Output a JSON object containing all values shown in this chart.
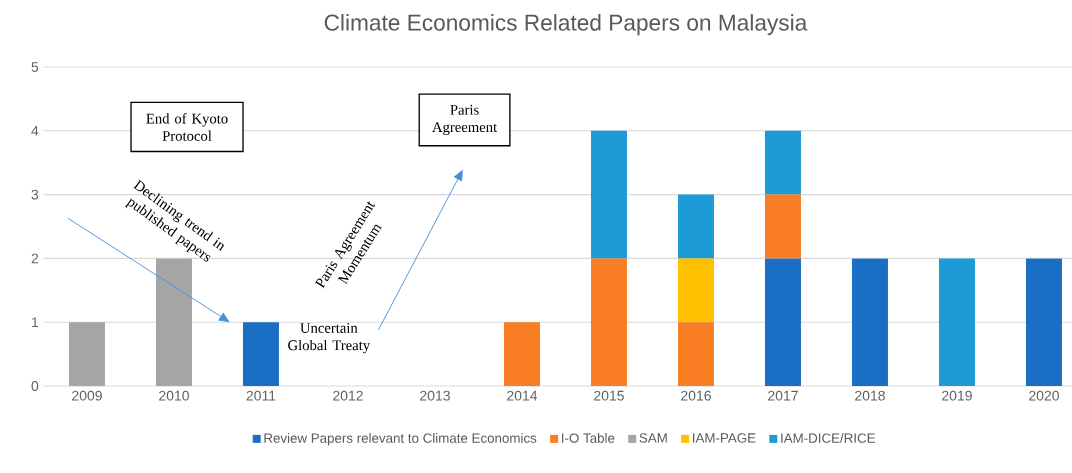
{
  "chart_data": {
    "type": "bar",
    "title": "Climate Economics Related Papers on Malaysia",
    "categories": [
      "2009",
      "2010",
      "2011",
      "2012",
      "2013",
      "2014",
      "2015",
      "2016",
      "2017",
      "2018",
      "2019",
      "2020"
    ],
    "stacked": true,
    "series": [
      {
        "name": "Review Papers relevant to Climate Economics",
        "color": "#1a6fc4",
        "values": [
          0,
          0,
          1,
          0,
          0,
          0,
          0,
          0,
          2,
          2,
          0,
          2
        ]
      },
      {
        "name": "I-O Table",
        "color": "#f97d23",
        "values": [
          0,
          0,
          0,
          0,
          0,
          1,
          2,
          1,
          1,
          0,
          0,
          0
        ]
      },
      {
        "name": "SAM",
        "color": "#a5a5a5",
        "values": [
          1,
          2,
          0,
          0,
          0,
          0,
          0,
          0,
          0,
          0,
          0,
          0
        ]
      },
      {
        "name": "IAM-PAGE",
        "color": "#ffc000",
        "values": [
          0,
          0,
          0,
          0,
          0,
          0,
          0,
          1,
          0,
          0,
          0,
          0
        ]
      },
      {
        "name": "IAM-DICE/RICE",
        "color": "#1e9ad6",
        "values": [
          0,
          0,
          0,
          0,
          0,
          0,
          2,
          1,
          1,
          0,
          2,
          0
        ]
      }
    ],
    "ylim": [
      0,
      5
    ],
    "yticks": [
      0,
      1,
      2,
      3,
      4,
      5
    ],
    "grid": "y",
    "legend": "bottom",
    "annotations": [
      "End of Kyoto Protocol",
      "Paris Agreement",
      "Declining trend in published papers",
      "Uncertain Global Treaty",
      "Paris Agreement Momentum"
    ]
  }
}
